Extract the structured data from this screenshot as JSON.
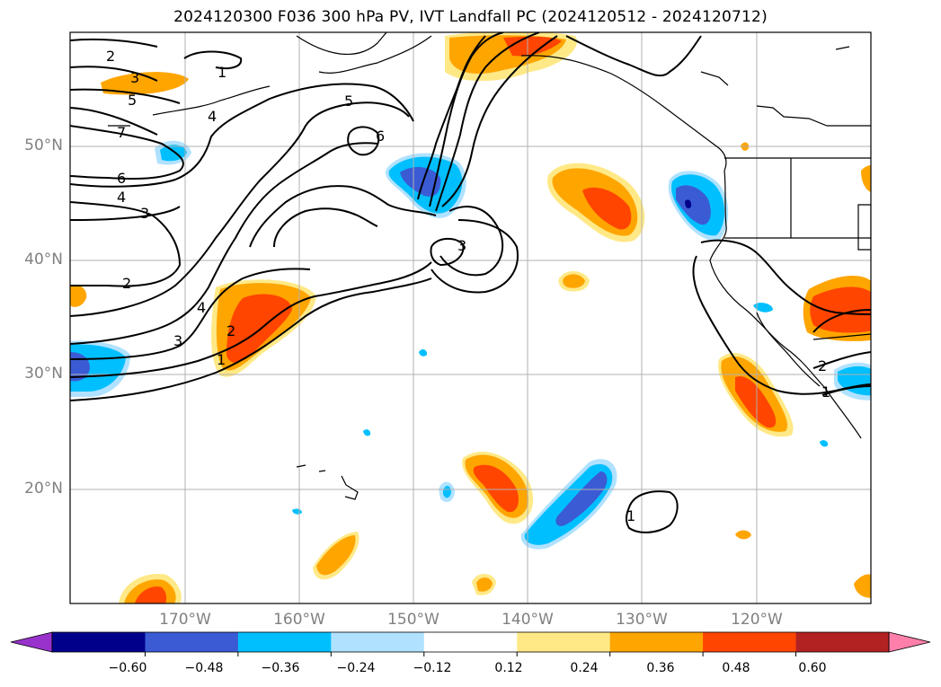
{
  "title": "2024120300 F036 300 hPa PV, IVT Landfall PC (2024120512 - 2024120712)",
  "lat_labels": [
    "50°N",
    "40°N",
    "30°N",
    "20°N"
  ],
  "lon_labels": [
    "170°W",
    "160°W",
    "150°W",
    "140°W",
    "130°W",
    "120°W"
  ],
  "colorbar": {
    "ticks": [
      "−0.60",
      "−0.48",
      "−0.36",
      "−0.24",
      "−0.12",
      "0.12",
      "0.24",
      "0.36",
      "0.48",
      "0.60"
    ],
    "colors": [
      "#9932cc",
      "#00008b",
      "#3b5bd4",
      "#00bfff",
      "#b0e2ff",
      "#ffffff",
      "#ffe987",
      "#ffa500",
      "#ff4500",
      "#b22222",
      "#ff7fab"
    ]
  },
  "contour_labels": [
    "1",
    "2",
    "3",
    "4",
    "5",
    "6",
    "7"
  ]
}
